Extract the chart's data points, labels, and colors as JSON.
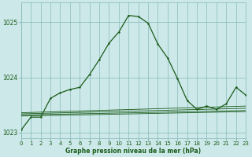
{
  "xlabel": "Graphe pression niveau de la mer (hPa)",
  "bg_color": "#cce8e8",
  "grid_color": "#88bbbb",
  "line_color": "#1a5c1a",
  "x_ticks": [
    0,
    1,
    2,
    3,
    4,
    5,
    6,
    7,
    8,
    9,
    10,
    11,
    12,
    13,
    14,
    15,
    16,
    17,
    18,
    19,
    20,
    21,
    22,
    23
  ],
  "y_ticks": [
    1023,
    1024,
    1025
  ],
  "xlim": [
    0,
    23
  ],
  "ylim": [
    1022.9,
    1025.35
  ],
  "series_main": [
    [
      0,
      1023.05
    ],
    [
      1,
      1023.28
    ],
    [
      2,
      1023.28
    ],
    [
      3,
      1023.62
    ],
    [
      4,
      1023.72
    ],
    [
      5,
      1023.78
    ],
    [
      6,
      1023.82
    ],
    [
      7,
      1024.05
    ],
    [
      8,
      1024.32
    ],
    [
      9,
      1024.62
    ],
    [
      10,
      1024.82
    ],
    [
      11,
      1025.12
    ],
    [
      12,
      1025.1
    ],
    [
      13,
      1024.98
    ],
    [
      14,
      1024.6
    ],
    [
      15,
      1024.35
    ],
    [
      16,
      1023.98
    ],
    [
      17,
      1023.58
    ],
    [
      18,
      1023.42
    ],
    [
      19,
      1023.48
    ],
    [
      20,
      1023.42
    ],
    [
      21,
      1023.52
    ],
    [
      22,
      1023.82
    ],
    [
      23,
      1023.68
    ]
  ],
  "series_flat1": [
    [
      0,
      1023.3
    ],
    [
      23,
      1023.38
    ]
  ],
  "series_flat2": [
    [
      0,
      1023.32
    ],
    [
      23,
      1023.4
    ]
  ],
  "series_flat3": [
    [
      0,
      1023.34
    ],
    [
      23,
      1023.44
    ]
  ],
  "series_flat4": [
    [
      0,
      1023.36
    ],
    [
      23,
      1023.48
    ]
  ]
}
